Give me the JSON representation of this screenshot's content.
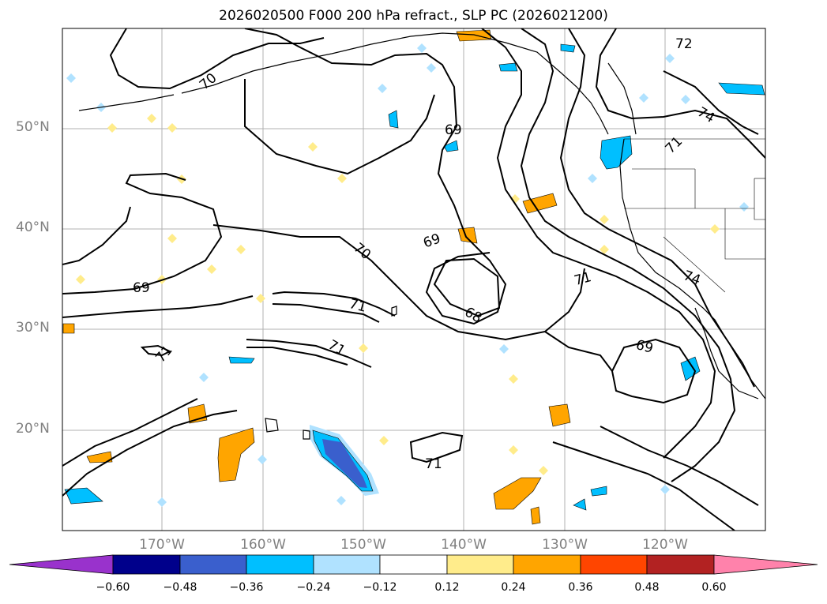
{
  "title": "2026020500 F000 200 hPa refract., SLP PC (2026021200)",
  "latitude_labels": [
    "50°N",
    "40°N",
    "30°N",
    "20°N"
  ],
  "longitude_labels": [
    "170°W",
    "160°W",
    "150°W",
    "140°W",
    "130°W",
    "120°W"
  ],
  "contour_labels": [
    "70",
    "69",
    "72",
    "74",
    "69",
    "70",
    "69",
    "71",
    "71",
    "71",
    "68",
    "71",
    "74",
    "69",
    "71",
    "71"
  ],
  "colorbar": {
    "tick_labels": [
      "−0.60",
      "−0.48",
      "−0.36",
      "−0.24",
      "−0.12",
      "0.12",
      "0.24",
      "0.36",
      "0.48",
      "0.60"
    ],
    "colors": [
      "#9932cc",
      "#00008b",
      "#3a5fcd",
      "#00bfff",
      "#b0e2ff",
      "#ffffff",
      "#ffec8b",
      "#ffa500",
      "#ff4500",
      "#b22222",
      "#ff82ab"
    ]
  }
}
